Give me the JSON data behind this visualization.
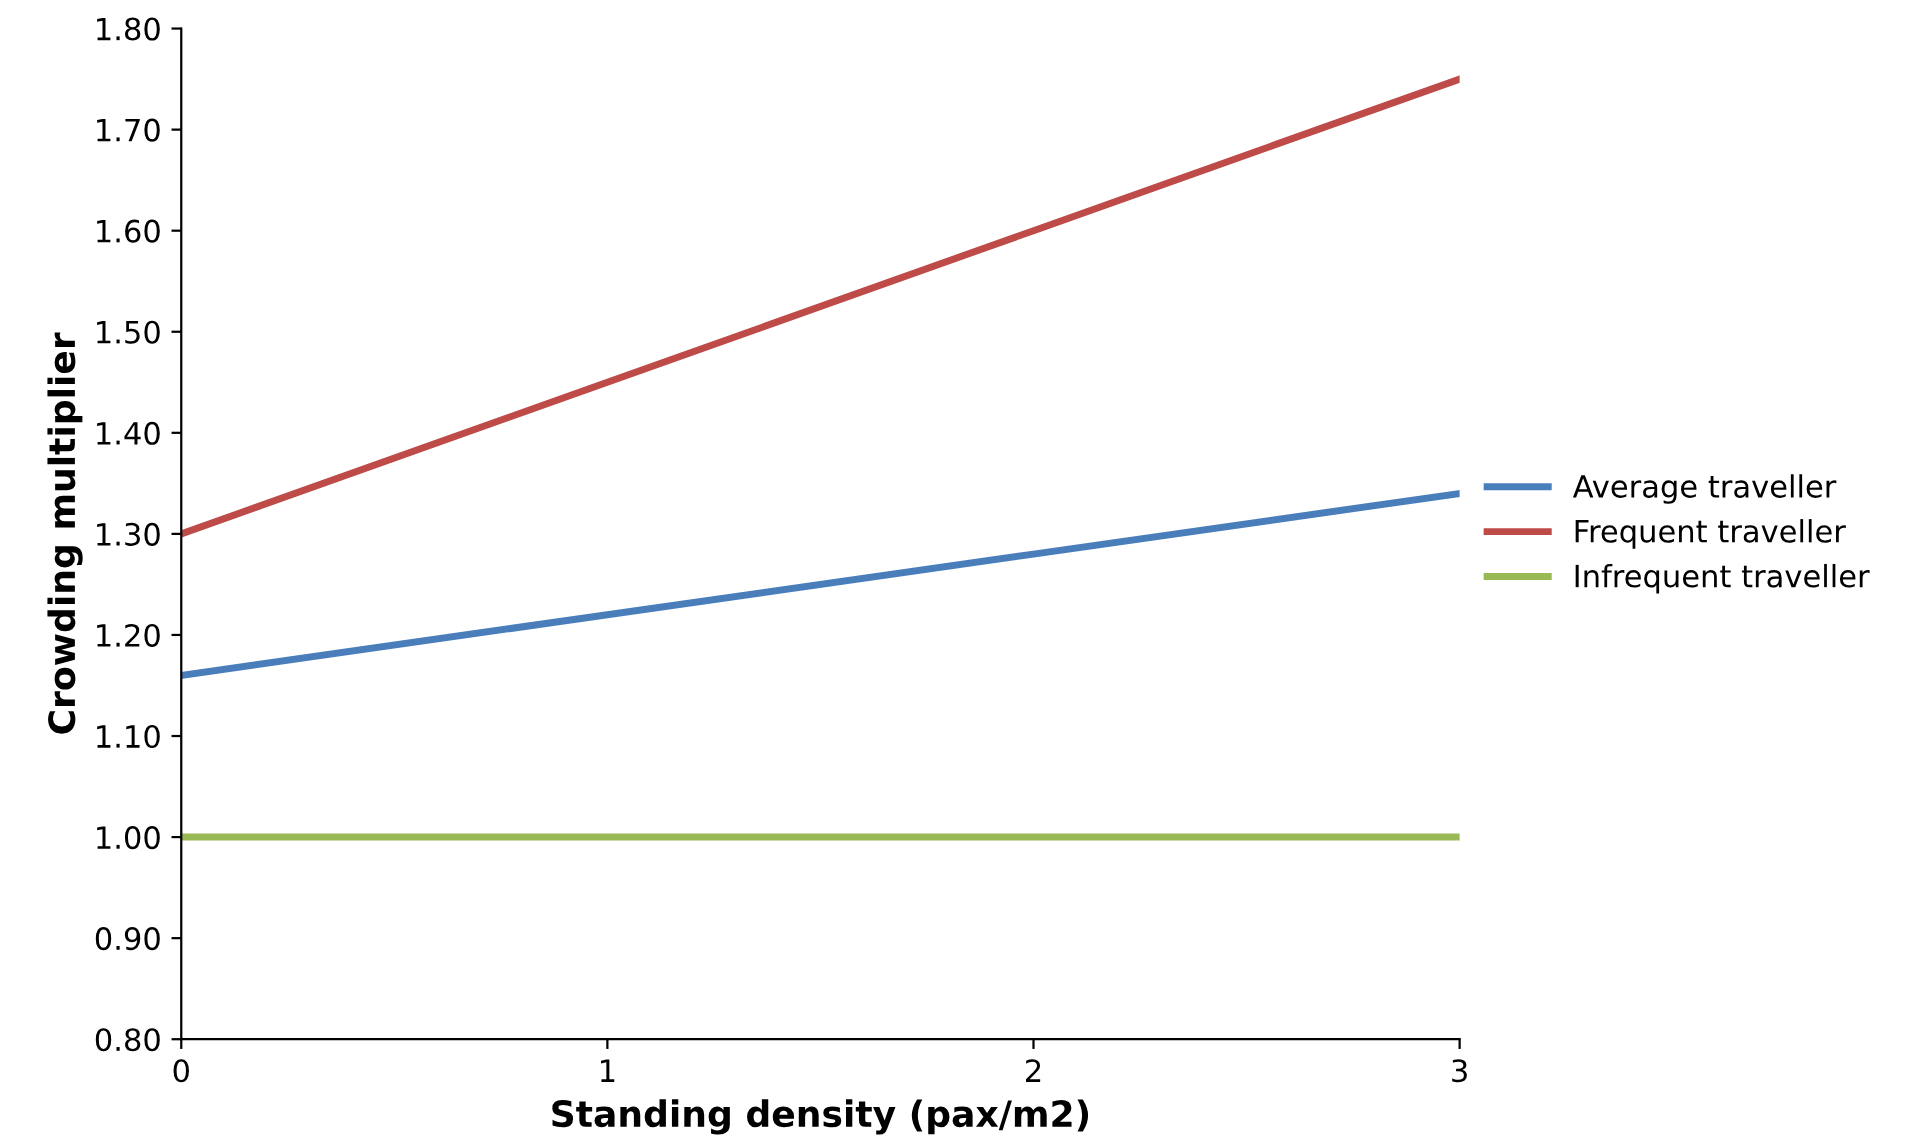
{
  "chart_data": {
    "type": "line",
    "xlabel": "Standing density (pax/m2)",
    "ylabel": "Crowding multiplier",
    "x": [
      0,
      1,
      2,
      3
    ],
    "series": [
      {
        "name": "Average traveller",
        "color": "#4a7ebb",
        "values": [
          1.16,
          1.22,
          1.28,
          1.34
        ]
      },
      {
        "name": "Frequent traveller",
        "color": "#be4b48",
        "values": [
          1.3,
          1.45,
          1.6,
          1.75
        ]
      },
      {
        "name": "Infrequent traveller",
        "color": "#98b954",
        "values": [
          1.0,
          1.0,
          1.0,
          1.0
        ]
      }
    ],
    "xlim": [
      0,
      3
    ],
    "xticks": [
      0,
      1,
      2,
      3
    ],
    "ylim": [
      0.8,
      1.8
    ],
    "yticks": [
      {
        "value": 0.8,
        "label": "0.80"
      },
      {
        "value": 0.9,
        "label": "0.90"
      },
      {
        "value": 1.0,
        "label": "1.00"
      },
      {
        "value": 1.1,
        "label": "1.10"
      },
      {
        "value": 1.2,
        "label": "1.20"
      },
      {
        "value": 1.3,
        "label": "1.30"
      },
      {
        "value": 1.4,
        "label": "1.40"
      },
      {
        "value": 1.5,
        "label": "1.50"
      },
      {
        "value": 1.6,
        "label": "1.60"
      },
      {
        "value": 1.7,
        "label": "1.70"
      },
      {
        "value": 1.8,
        "label": "1.80"
      }
    ],
    "grid": false,
    "legend": "right",
    "marker": "none",
    "line_style": "solid"
  }
}
